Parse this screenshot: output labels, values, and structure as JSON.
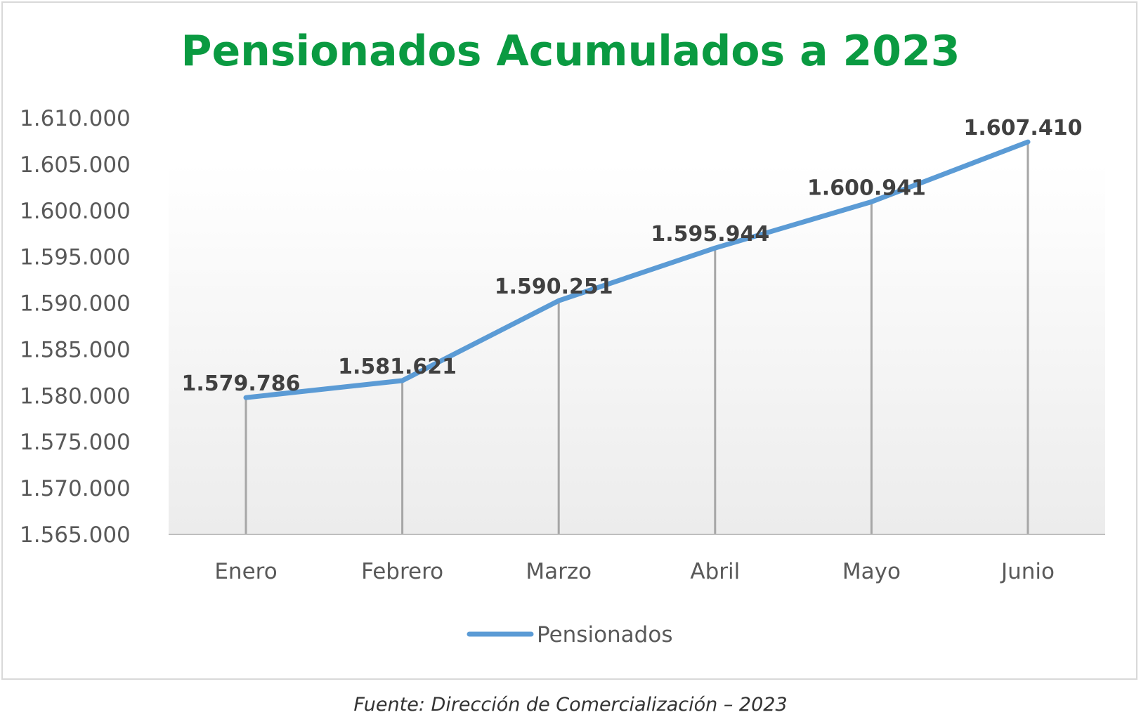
{
  "chart_data": {
    "type": "line",
    "title": "Pensionados Acumulados a 2023",
    "categories": [
      "Enero",
      "Febrero",
      "Marzo",
      "Abril",
      "Mayo",
      "Junio"
    ],
    "series": [
      {
        "name": "Pensionados",
        "values": [
          1579786,
          1581621,
          1590251,
          1595944,
          1600941,
          1607410
        ],
        "labels": [
          "1.579.786",
          "1.581.621",
          "1.590.251",
          "1.595.944",
          "1.600.941",
          "1.607.410"
        ]
      }
    ],
    "ylim": [
      1565000,
      1610000
    ],
    "yticks": [
      1565000,
      1570000,
      1575000,
      1580000,
      1585000,
      1590000,
      1595000,
      1600000,
      1605000,
      1610000
    ],
    "ytick_labels": [
      "1.565.000",
      "1.570.000",
      "1.575.000",
      "1.580.000",
      "1.585.000",
      "1.590.000",
      "1.595.000",
      "1.600.000",
      "1.605.000",
      "1.610.000"
    ],
    "drop_lines": true,
    "legend_position": "bottom",
    "grid": false,
    "colors": {
      "title": "#0a9a41",
      "line": "#5b9bd5",
      "drop_line": "#a6a6a6",
      "axis": "#bfbfbf",
      "tick_text": "#595959",
      "data_label": "#404040"
    }
  },
  "source_note": "Fuente: Dirección de Comercialización – 2023"
}
